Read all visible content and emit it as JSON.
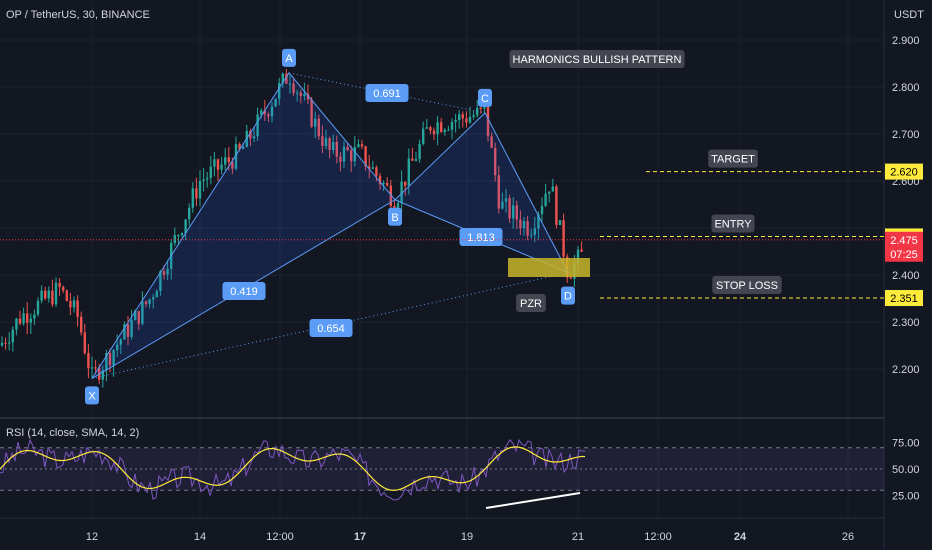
{
  "header": {
    "symbol": "OP / TetherUS, 30, BINANCE",
    "currency": "USDT"
  },
  "colors": {
    "background": "#131722",
    "up": "#26a69a",
    "down": "#ef5350",
    "pattern": "#2962ff",
    "pattern_line": "#5b9cf6",
    "target": "#ffeb3b",
    "rsi_line": "#7e57c2",
    "rsi_ma": "#ffeb3b",
    "rsi_band": "#7e57c2",
    "last_price": "#f23645",
    "pzr_box": "#c9b52a"
  },
  "price_axis": {
    "ticks": [
      {
        "value": 2.9,
        "label": "2.900"
      },
      {
        "value": 2.8,
        "label": "2.800"
      },
      {
        "value": 2.7,
        "label": "2.700"
      },
      {
        "value": 2.6,
        "label": "2.600"
      },
      {
        "value": 2.4,
        "label": "2.400"
      },
      {
        "value": 2.3,
        "label": "2.300"
      },
      {
        "value": 2.2,
        "label": "2.200"
      }
    ],
    "badges": [
      {
        "value": 2.62,
        "label": "2.620",
        "kind": "yellow"
      },
      {
        "value": 2.482,
        "label": "2.482",
        "kind": "yellow"
      },
      {
        "value": 2.351,
        "label": "2.351",
        "kind": "yellow"
      }
    ],
    "last_price": {
      "value": 2.475,
      "label": "2.475",
      "countdown": "07:25"
    }
  },
  "time_axis": [
    {
      "label": "12",
      "bold": false
    },
    {
      "label": "14",
      "bold": false
    },
    {
      "label": "12:00",
      "bold": false
    },
    {
      "label": "17",
      "bold": true
    },
    {
      "label": "19",
      "bold": false
    },
    {
      "label": "21",
      "bold": false
    },
    {
      "label": "12:00",
      "bold": false
    },
    {
      "label": "24",
      "bold": true
    },
    {
      "label": "26",
      "bold": false
    }
  ],
  "pattern": {
    "title": "HARMONICS BULLISH PATTERN",
    "points": {
      "X": {
        "label": "X",
        "price": 2.18
      },
      "A": {
        "label": "A",
        "price": 2.83
      },
      "B": {
        "label": "B",
        "price": 2.56
      },
      "C": {
        "label": "C",
        "price": 2.745
      },
      "D": {
        "label": "D",
        "price": 2.405
      }
    },
    "ratios": {
      "xb": "0.419",
      "ac": "0.691",
      "bd": "1.813",
      "xd": "0.654"
    },
    "pzr_label": "PZR"
  },
  "levels": {
    "target": {
      "label": "TARGET",
      "price": 2.62
    },
    "entry": {
      "label": "ENTRY",
      "price": 2.482
    },
    "stop": {
      "label": "STOP LOSS",
      "price": 2.351
    }
  },
  "rsi": {
    "title": "RSI (14, close, SMA, 14, 2)",
    "ticks": [
      {
        "value": 75,
        "label": "75.00"
      },
      {
        "value": 50,
        "label": "50.00"
      },
      {
        "value": 25,
        "label": "25.00"
      }
    ],
    "upper": 70,
    "lower": 30
  }
}
